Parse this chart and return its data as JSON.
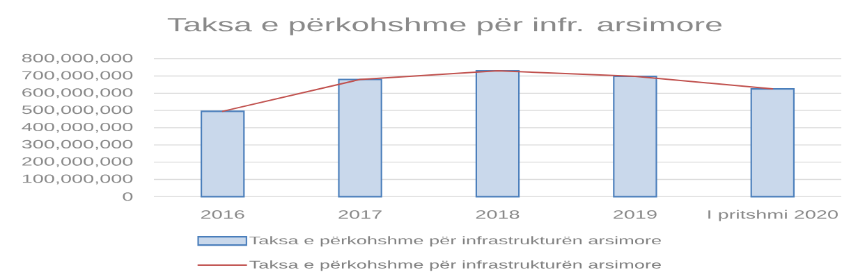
{
  "chart_data": {
    "type": "bar",
    "title": "Taksa e përkohshme për infr. arsimore",
    "categories": [
      "2016",
      "2017",
      "2018",
      "2019",
      "I pritshmi 2020"
    ],
    "series": [
      {
        "name": "Taksa e përkohshme për infrastrukturën arsimore",
        "color": "#4a7ebb",
        "values": [
          495000000,
          680000000,
          730000000,
          698000000,
          625000000
        ]
      },
      {
        "name": "Taksa e përkohshme për infrastrukturën arsimore",
        "type": "line",
        "color": "#c0504d",
        "values": [
          495000000,
          680000000,
          730000000,
          698000000,
          625000000
        ]
      }
    ],
    "ylim": [
      0,
      800000000
    ],
    "yticks": [
      0,
      {
        "value": 100000000,
        "label": "100,000,000"
      },
      {
        "value": 200000000,
        "label": "200,000,000"
      },
      {
        "value": 300000000,
        "label": "300,000,000"
      },
      {
        "value": 400000000,
        "label": "400,000,000"
      },
      {
        "value": 500000000,
        "label": "500,000,000"
      },
      {
        "value": 600000000,
        "label": "600,000,000"
      },
      {
        "value": 700000000,
        "label": "700,000,000"
      },
      {
        "value": 800000000,
        "label": "800,000,000"
      }
    ],
    "grid": "y",
    "legend": "bottom"
  }
}
